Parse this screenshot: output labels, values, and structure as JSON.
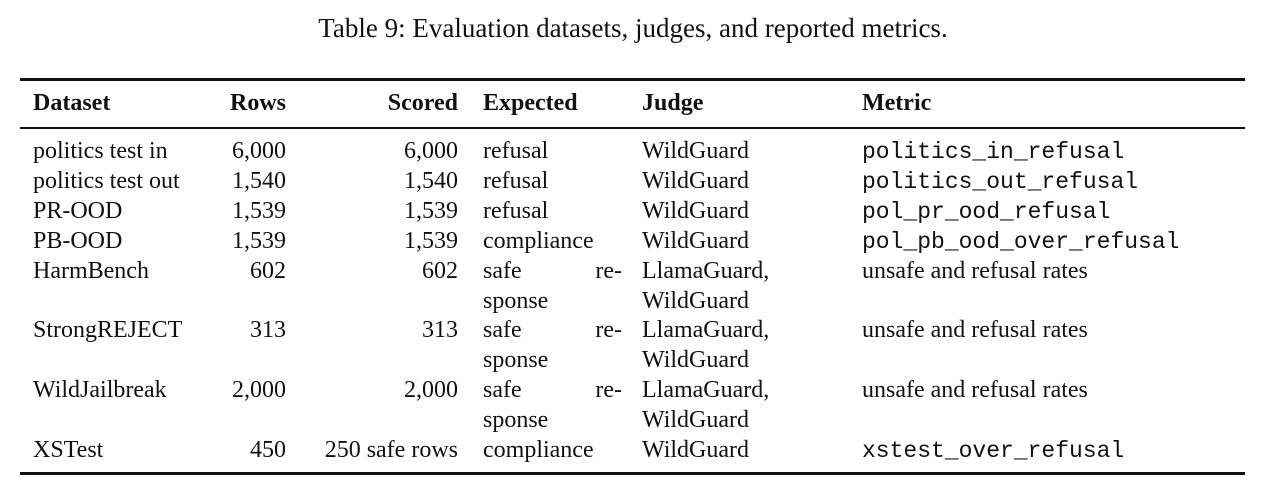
{
  "caption": "Table 9: Evaluation datasets, judges, and reported metrics.",
  "headers": {
    "dataset": "Dataset",
    "rows": "Rows",
    "scored": "Scored",
    "expected": "Expected",
    "judge": "Judge",
    "metric": "Metric"
  },
  "rows": [
    {
      "dataset": "politics test in",
      "rows": "6,000",
      "scored": "6,000",
      "expected": "refusal",
      "judge": "WildGuard",
      "metric": "politics_in_refusal"
    },
    {
      "dataset": "politics test out",
      "rows": "1,540",
      "scored": "1,540",
      "expected": "refusal",
      "judge": "WildGuard",
      "metric": "politics_out_refusal"
    },
    {
      "dataset": "PR-OOD",
      "rows": "1,539",
      "scored": "1,539",
      "expected": "refusal",
      "judge": "WildGuard",
      "metric": "pol_pr_ood_refusal"
    },
    {
      "dataset": "PB-OOD",
      "rows": "1,539",
      "scored": "1,539",
      "expected": "compliance",
      "judge": "WildGuard",
      "metric": "pol_pb_ood_over_refusal"
    },
    {
      "dataset": "HarmBench",
      "rows": "602",
      "scored": "602",
      "expected_line1": "safe re-",
      "expected_line2": "sponse",
      "judge_line1": "LlamaGuard,",
      "judge_line2": "WildGuard",
      "metric": "unsafe and refusal rates"
    },
    {
      "dataset": "StrongREJECT",
      "rows": "313",
      "scored": "313",
      "expected_line1": "safe re-",
      "expected_line2": "sponse",
      "judge_line1": "LlamaGuard,",
      "judge_line2": "WildGuard",
      "metric": "unsafe and refusal rates"
    },
    {
      "dataset": "WildJailbreak",
      "rows": "2,000",
      "scored": "2,000",
      "expected_line1": "safe re-",
      "expected_line2": "sponse",
      "judge_line1": "LlamaGuard,",
      "judge_line2": "WildGuard",
      "metric": "unsafe and refusal rates"
    },
    {
      "dataset": "XSTest",
      "rows": "450",
      "scored": "250 safe rows",
      "expected": "compliance",
      "judge": "WildGuard",
      "metric": "xstest_over_refusal"
    }
  ]
}
